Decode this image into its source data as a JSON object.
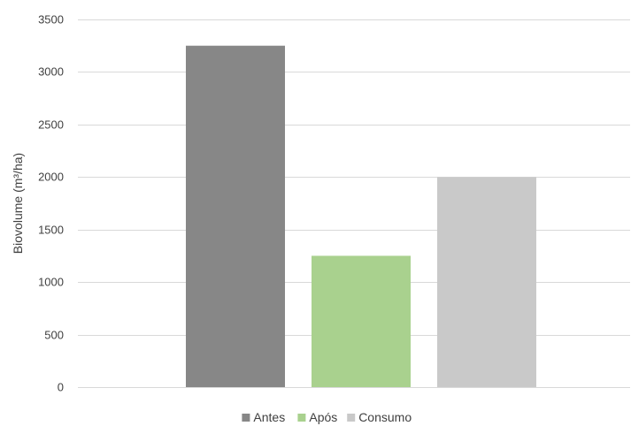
{
  "chart_data": {
    "type": "bar",
    "title": "",
    "xlabel": "",
    "ylabel": "Biovolume (m³/ha)",
    "ylim": [
      0,
      3500
    ],
    "yticks": [
      0,
      500,
      1000,
      1500,
      2000,
      2500,
      3000,
      3500
    ],
    "grid": true,
    "legend_position": "bottom",
    "series": [
      {
        "name": "Antes",
        "value": 3250,
        "color": "#878787"
      },
      {
        "name": "Após",
        "value": 1250,
        "color": "#a9d18e"
      },
      {
        "name": "Consumo",
        "value": 2000,
        "color": "#c9c9c9"
      }
    ]
  }
}
